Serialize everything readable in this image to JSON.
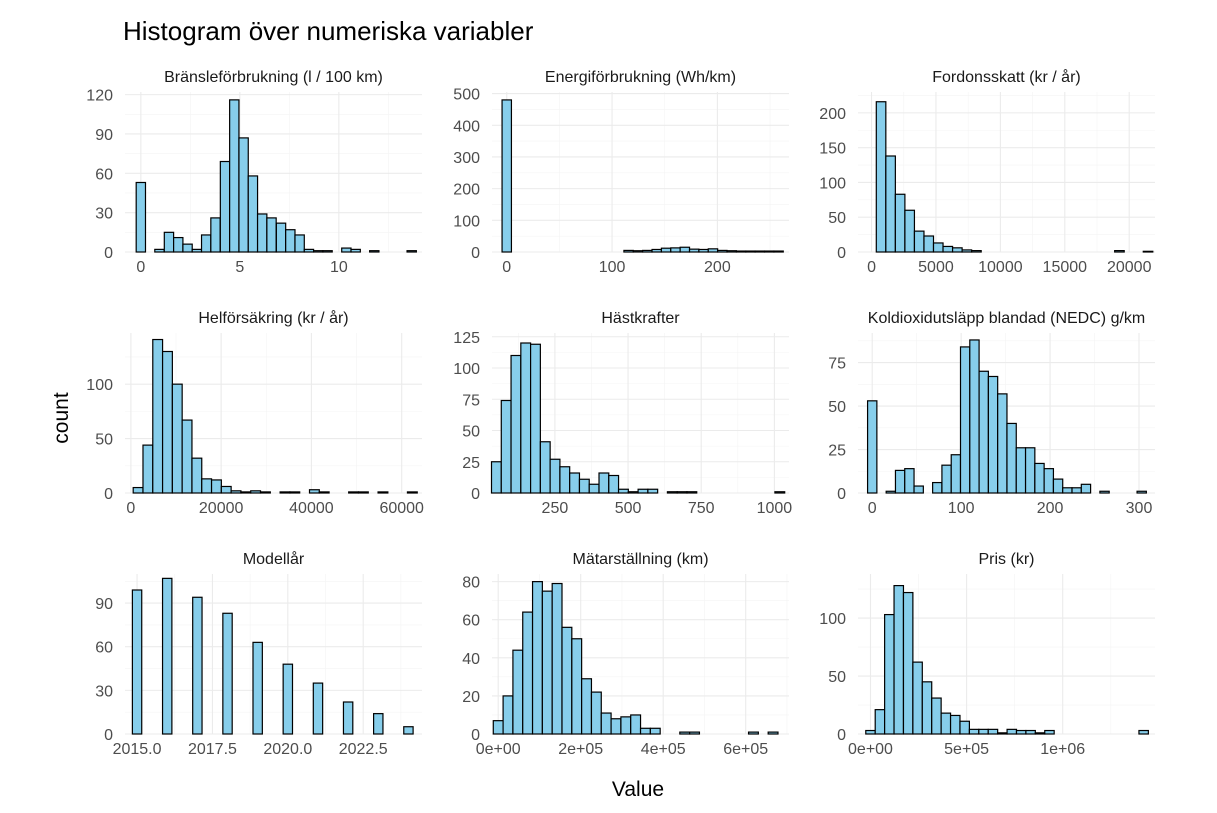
{
  "title": "Histogram över numeriska variabler",
  "xlabel": "Value",
  "ylabel": "count",
  "colors": {
    "bar_fill": "#87ceeb",
    "bar_stroke": "#000000",
    "grid": "#ebebeb"
  },
  "chart_data": [
    {
      "type": "bar",
      "histogram": true,
      "title": "Bränsleförbrukning (l / 100 km)",
      "xlim": [
        -0.8,
        14.2
      ],
      "ylim": [
        0,
        122
      ],
      "xticks": [
        0,
        5,
        10
      ],
      "xtick_labels": [
        "0",
        "5",
        "10"
      ],
      "yticks": [
        0,
        30,
        60,
        90,
        120
      ],
      "ytick_labels": [
        "0",
        "30",
        "60",
        "90",
        "120"
      ],
      "bin_width": 0.47,
      "x": [
        0.0,
        0.47,
        0.94,
        1.42,
        1.89,
        2.36,
        2.83,
        3.3,
        3.77,
        4.25,
        4.72,
        5.19,
        5.66,
        6.13,
        6.6,
        7.08,
        7.55,
        8.02,
        8.49,
        8.96,
        9.43,
        9.91,
        10.38,
        10.85,
        11.32,
        11.79,
        12.26,
        12.74,
        13.21,
        13.68
      ],
      "values": [
        53,
        0,
        2,
        15,
        11,
        6,
        2,
        13,
        26,
        69,
        116,
        87,
        58,
        29,
        26,
        22,
        17,
        13,
        2,
        1,
        1,
        0,
        3,
        2,
        0,
        1,
        0,
        0,
        0,
        1
      ]
    },
    {
      "type": "bar",
      "histogram": true,
      "title": "Energiförbrukning (Wh/km)",
      "xlim": [
        -14,
        268
      ],
      "ylim": [
        0,
        505
      ],
      "xticks": [
        0,
        100,
        200
      ],
      "xtick_labels": [
        "0",
        "100",
        "200"
      ],
      "yticks": [
        0,
        100,
        200,
        300,
        400,
        500
      ],
      "ytick_labels": [
        "0",
        "100",
        "200",
        "300",
        "400",
        "500"
      ],
      "bin_width": 8.9,
      "x": [
        0.0,
        8.9,
        17.8,
        26.7,
        35.6,
        44.5,
        53.4,
        62.3,
        71.2,
        80.1,
        89.0,
        97.9,
        106.8,
        115.7,
        124.6,
        133.5,
        142.4,
        151.3,
        160.2,
        169.1,
        178.0,
        186.9,
        195.8,
        204.7,
        213.6,
        222.5,
        231.4,
        240.3,
        249.2,
        258.1
      ],
      "values": [
        480,
        0,
        0,
        0,
        0,
        0,
        0,
        0,
        0,
        0,
        0,
        0,
        0,
        5,
        4,
        5,
        8,
        12,
        13,
        15,
        9,
        8,
        10,
        5,
        4,
        3,
        3,
        3,
        3,
        3
      ]
    },
    {
      "type": "bar",
      "histogram": true,
      "title": "Fordonsskatt (kr / år)",
      "xlim": [
        -1050,
        22000
      ],
      "ylim": [
        0,
        230
      ],
      "xticks": [
        0,
        5000,
        10000,
        15000,
        20000
      ],
      "xtick_labels": [
        "0",
        "5000",
        "10000",
        "15000",
        "20000"
      ],
      "yticks": [
        0,
        50,
        100,
        150,
        200
      ],
      "ytick_labels": [
        "0",
        "50",
        "100",
        "150",
        "200"
      ],
      "bin_width": 740,
      "x": [
        740,
        1480,
        2220,
        2960,
        3700,
        4440,
        5180,
        5920,
        6660,
        7400,
        8140,
        8880,
        9620,
        10360,
        11100,
        11840,
        12580,
        13320,
        14060,
        14800,
        15540,
        16280,
        17020,
        17760,
        18500,
        19240,
        19980,
        20720,
        21460
      ],
      "values": [
        216,
        138,
        83,
        60,
        30,
        23,
        13,
        8,
        6,
        3,
        2,
        0,
        0,
        0,
        0,
        0,
        0,
        0,
        0,
        0,
        0,
        0,
        0,
        0,
        0,
        2,
        0,
        0,
        1
      ]
    },
    {
      "type": "bar",
      "histogram": true,
      "title": "Helförsäkring (kr / år)",
      "xlim": [
        -1300,
        64500
      ],
      "ylim": [
        0,
        147
      ],
      "xticks": [
        0,
        20000,
        40000,
        60000
      ],
      "xtick_labels": [
        "0",
        "20000",
        "40000",
        "60000"
      ],
      "yticks": [
        0,
        50,
        100
      ],
      "ytick_labels": [
        "0",
        "50",
        "100"
      ],
      "bin_width": 2170,
      "x": [
        1600,
        3770,
        5940,
        8110,
        10280,
        12450,
        14620,
        16790,
        18960,
        21130,
        23300,
        25470,
        27640,
        29810,
        31980,
        34150,
        36320,
        38490,
        40660,
        42830,
        45000,
        47170,
        49340,
        51510,
        53680,
        55850,
        58020,
        60190,
        62360
      ],
      "values": [
        5,
        44,
        141,
        130,
        100,
        67,
        32,
        13,
        12,
        6,
        2,
        1,
        2,
        1,
        0,
        1,
        1,
        0,
        3,
        1,
        0,
        0,
        1,
        1,
        0,
        1,
        0,
        0,
        1
      ]
    },
    {
      "type": "bar",
      "histogram": true,
      "title": "Hästkrafter",
      "xlim": [
        35,
        1050
      ],
      "ylim": [
        0,
        128
      ],
      "xticks": [
        250,
        500,
        750,
        1000
      ],
      "xtick_labels": [
        "250",
        "500",
        "750",
        "1000"
      ],
      "yticks": [
        0,
        25,
        50,
        75,
        100,
        125
      ],
      "ytick_labels": [
        "0",
        "25",
        "50",
        "75",
        "100",
        "125"
      ],
      "bin_width": 33.4,
      "x": [
        50.0,
        83.4,
        116.8,
        150.2,
        183.6,
        217.0,
        250.4,
        283.8,
        317.2,
        350.6,
        384.0,
        417.4,
        450.8,
        484.2,
        517.6,
        551.0,
        584.4,
        617.8,
        651.2,
        684.6,
        718.0,
        751.4,
        784.8,
        818.2,
        851.6,
        885.0,
        918.4,
        951.8,
        985.2,
        1018.6
      ],
      "values": [
        25,
        74,
        110,
        120,
        119,
        41,
        27,
        21,
        16,
        11,
        7,
        16,
        14,
        3,
        1,
        3,
        3,
        0,
        1,
        1,
        1,
        0,
        0,
        0,
        0,
        0,
        0,
        0,
        0,
        1
      ]
    },
    {
      "type": "bar",
      "histogram": true,
      "title": "Koldioxidutsläpp blandad (NEDC) g/km",
      "xlim": [
        -16,
        318
      ],
      "ylim": [
        0,
        92
      ],
      "xticks": [
        0,
        100,
        200,
        300
      ],
      "xtick_labels": [
        "0",
        "100",
        "200",
        "300"
      ],
      "yticks": [
        0,
        25,
        50,
        75
      ],
      "ytick_labels": [
        "0",
        "25",
        "50",
        "75"
      ],
      "bin_width": 10.45,
      "x": [
        0.0,
        10.45,
        20.9,
        31.35,
        41.8,
        52.25,
        62.7,
        73.15,
        83.6,
        94.05,
        104.5,
        114.95,
        125.4,
        135.85,
        146.3,
        156.75,
        167.2,
        177.65,
        188.1,
        198.55,
        209.0,
        219.45,
        229.9,
        240.35,
        250.8,
        261.25,
        271.7,
        282.15,
        292.6,
        303.05
      ],
      "values": [
        53,
        0,
        1,
        13,
        14,
        4,
        0,
        6,
        16,
        22,
        84,
        88,
        70,
        67,
        57,
        40,
        26,
        26,
        17,
        14,
        8,
        3,
        3,
        5,
        0,
        1,
        0,
        0,
        0,
        1
      ]
    },
    {
      "type": "bar",
      "histogram": true,
      "title": "Modellår",
      "xlim": [
        2014.6,
        2024.45
      ],
      "ylim": [
        0,
        110
      ],
      "xticks": [
        2015.0,
        2017.5,
        2020.0,
        2022.5
      ],
      "xtick_labels": [
        "2015.0",
        "2017.5",
        "2020.0",
        "2022.5"
      ],
      "yticks": [
        0,
        30,
        60,
        90
      ],
      "ytick_labels": [
        "0",
        "30",
        "60",
        "90"
      ],
      "bin_width": 0.31,
      "x": [
        2015,
        2016,
        2017,
        2018,
        2019,
        2020,
        2021,
        2022,
        2023,
        2024
      ],
      "values": [
        99,
        107,
        94,
        83,
        63,
        48,
        35,
        22,
        14,
        5
      ]
    },
    {
      "type": "bar",
      "histogram": true,
      "title": "Mätarställning (km)",
      "xlim": [
        -15000,
        705000
      ],
      "ylim": [
        0,
        84
      ],
      "xticks": [
        0,
        200000,
        400000,
        600000
      ],
      "xtick_labels": [
        "0e+00",
        "2e+05",
        "4e+05",
        "6e+05"
      ],
      "yticks": [
        0,
        20,
        40,
        60,
        80
      ],
      "ytick_labels": [
        "0",
        "20",
        "40",
        "60",
        "80"
      ],
      "bin_width": 23800,
      "x": [
        0,
        23800,
        47600,
        71400,
        95200,
        119000,
        142800,
        166600,
        190400,
        214200,
        238000,
        261800,
        285600,
        309400,
        333200,
        357000,
        380800,
        404600,
        428400,
        452200,
        476000,
        499800,
        523600,
        547400,
        571200,
        595000,
        618800,
        642600,
        666400
      ],
      "values": [
        7,
        20,
        44,
        64,
        80,
        75,
        79,
        56,
        50,
        29,
        22,
        11,
        8,
        9,
        10,
        3,
        3,
        0,
        0,
        1,
        1,
        0,
        0,
        0,
        0,
        0,
        1,
        0,
        1
      ]
    },
    {
      "type": "bar",
      "histogram": true,
      "title": "Pris (kr)",
      "xlim": [
        -65000,
        1480000
      ],
      "ylim": [
        0,
        138
      ],
      "xticks": [
        0,
        500000,
        1000000
      ],
      "xtick_labels": [
        "0e+00",
        "5e+05",
        "1e+06"
      ],
      "yticks": [
        0,
        50,
        100
      ],
      "ytick_labels": [
        "0",
        "50",
        "100"
      ],
      "bin_width": 49000,
      "x": [
        0,
        49000,
        98000,
        147000,
        196000,
        245000,
        294000,
        343000,
        392000,
        441000,
        490000,
        539000,
        588000,
        637000,
        686000,
        735000,
        784000,
        833000,
        882000,
        931000,
        980000,
        1029000,
        1078000,
        1127000,
        1176000,
        1225000,
        1274000,
        1323000,
        1372000,
        1421000
      ],
      "values": [
        3,
        21,
        103,
        128,
        122,
        62,
        45,
        31,
        18,
        16,
        11,
        4,
        4,
        4,
        1,
        4,
        3,
        3,
        1,
        3,
        0,
        0,
        0,
        0,
        0,
        0,
        0,
        0,
        0,
        3
      ]
    }
  ]
}
